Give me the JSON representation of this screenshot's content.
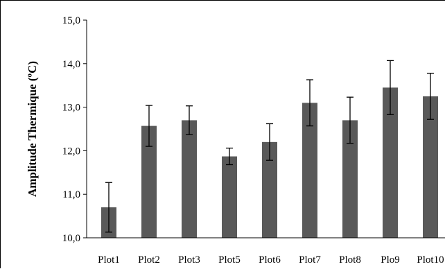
{
  "chart_data": {
    "type": "bar",
    "title": "",
    "xlabel": "",
    "ylabel": "Amplitude Thermique (ºC)",
    "ylim": [
      10.0,
      15.0
    ],
    "yticks": [
      "10,0",
      "11,0",
      "12,0",
      "13,0",
      "14,0",
      "15,0"
    ],
    "ytick_values": [
      10.0,
      11.0,
      12.0,
      13.0,
      14.0,
      15.0
    ],
    "categories": [
      "Plot1",
      "Plot2",
      "Plot3",
      "Plot5",
      "Plot6",
      "Plot7",
      "Plot8",
      "Plo9",
      "Plot10"
    ],
    "values": [
      10.7,
      12.57,
      12.7,
      11.87,
      12.2,
      13.1,
      12.7,
      13.45,
      13.25
    ],
    "errors": [
      0.57,
      0.47,
      0.33,
      0.19,
      0.42,
      0.53,
      0.53,
      0.62,
      0.53
    ],
    "grid": false,
    "legend": "none",
    "bar_color": "#595959",
    "error_bar_color": "#000000"
  }
}
